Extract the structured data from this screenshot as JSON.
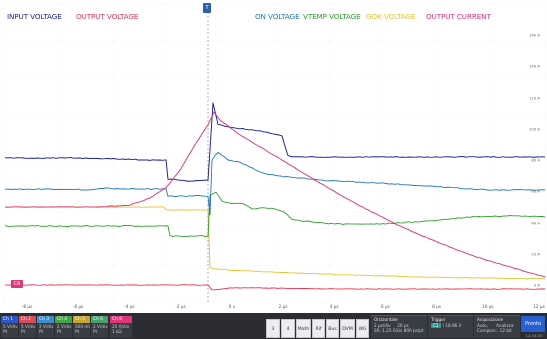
{
  "legend": {
    "input_voltage": "INPUT VOLTAGE",
    "output_voltage": "OUTPUT VOLTAGE",
    "on_voltage": "ON VOLTAGE",
    "vtemp_voltage": "VTEMP VOLTAGE",
    "gok_voltage": "GOK VOLTAGE",
    "output_current": "OUTPUT CURRENT"
  },
  "colors": {
    "input_voltage": "#1a1d9c",
    "output_voltage": "#e8344f",
    "on_voltage": "#1f78b4",
    "vtemp_voltage": "#2ca02c",
    "gok_voltage": "#e6c32e",
    "output_current": "#e0357a",
    "grid": "#d5d5d5"
  },
  "x_ticks": [
    "-8 µs",
    "-6 µs",
    "-4 µs",
    "-2 µs",
    "0 s",
    "2 µs",
    "4 µs",
    "6 µs",
    "8 µs",
    "10 µs",
    "12 µs"
  ],
  "y_ticks": [
    "160 A",
    "140 A",
    "120 A",
    "100 A",
    "80 A",
    "60 A",
    "40 A",
    "20 A",
    "0 A"
  ],
  "markers": {
    "ground": "C6",
    "trigger": "T"
  },
  "channels": [
    {
      "name": "Ch 1",
      "line1": "5 V/div",
      "line2": "Pt",
      "color": "#2b55c8"
    },
    {
      "name": "Ch 2",
      "line1": "5 V/div",
      "line2": "Pt",
      "color": "#d84c5c"
    },
    {
      "name": "Ch 3",
      "line1": "2 V/div",
      "line2": "Pt",
      "color": "#3c8dc9"
    },
    {
      "name": "Ch 4",
      "line1": "2 V/div",
      "line2": "Pt",
      "color": "#44a544"
    },
    {
      "name": "Ch 5",
      "line1": "500 mV/div",
      "line2": "Pt",
      "color": "#c7a72f"
    },
    {
      "name": "Ch 6",
      "line1": "2 V/div",
      "line2": "Pt",
      "color": "#46a36f"
    },
    {
      "name": "Ch 8",
      "line1": "20 A/div",
      "line2": "1 kΩ",
      "color": "#e0357a"
    }
  ],
  "mid_buttons": [
    "3",
    "4",
    "Math",
    "Rif",
    "Bus",
    "DVM",
    "WG"
  ],
  "horizontal": {
    "title": "Orizzontale",
    "line1": "2 µs/div",
    "line2": "SR: 1.25 GS/s",
    "line3": "20 µs",
    "line4": "800 ps/pt"
  },
  "trigger": {
    "title": "Trigger",
    "chip": "C1",
    "line1": "\\ 18.96 V"
  },
  "acquisition": {
    "title": "Acquisizione",
    "line1": "Auto,",
    "line2": "Analizza",
    "line3": "Campion.: 12 bit"
  },
  "run_button": "Pronto",
  "clock": "12:34:20"
}
